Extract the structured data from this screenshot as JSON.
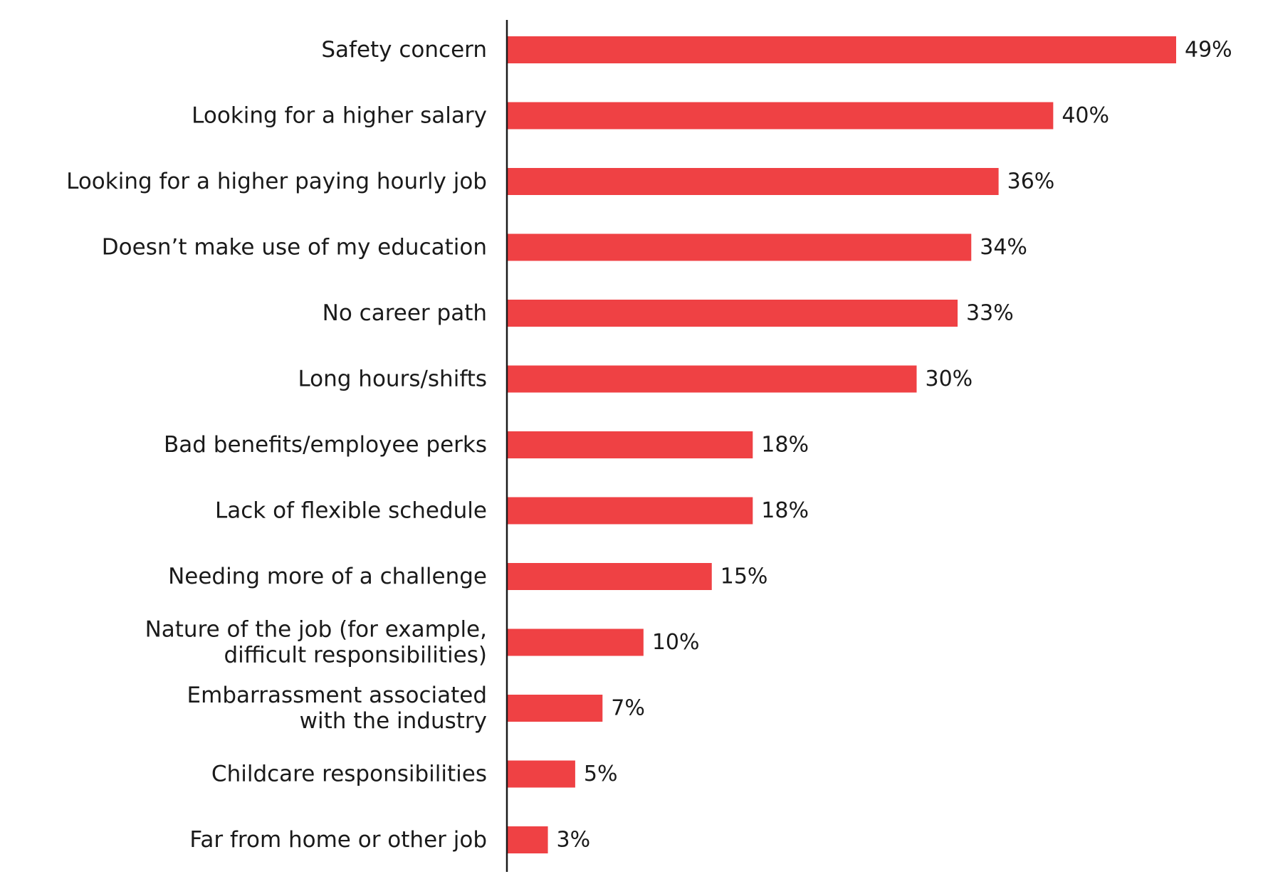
{
  "chart_data": {
    "type": "bar",
    "orientation": "horizontal",
    "categories": [
      [
        "Safety concern"
      ],
      [
        "Looking for a higher salary"
      ],
      [
        "Looking for a higher paying hourly job"
      ],
      [
        "Doesn’t make use of my education"
      ],
      [
        "No career path"
      ],
      [
        "Long hours/shifts"
      ],
      [
        "Bad benefits/employee perks"
      ],
      [
        "Lack of flexible schedule"
      ],
      [
        "Needing more of a challenge"
      ],
      [
        "Nature of the job (for example,",
        "difficult responsibilities)"
      ],
      [
        "Embarrassment associated",
        "with the industry"
      ],
      [
        "Childcare responsibilities"
      ],
      [
        "Far from home or other job"
      ]
    ],
    "values": [
      49,
      40,
      36,
      34,
      33,
      30,
      18,
      18,
      15,
      10,
      7,
      5,
      3
    ],
    "value_labels": [
      "49%",
      "40%",
      "36%",
      "34%",
      "33%",
      "30%",
      "18%",
      "18%",
      "15%",
      "10%",
      "7%",
      "5%",
      "3%"
    ],
    "xlim": [
      0,
      49
    ],
    "title": "",
    "xlabel": "",
    "ylabel": "",
    "bar_color": "#ef4144",
    "axis_color": "#1a1a1a",
    "grid": false,
    "legend": "none"
  }
}
